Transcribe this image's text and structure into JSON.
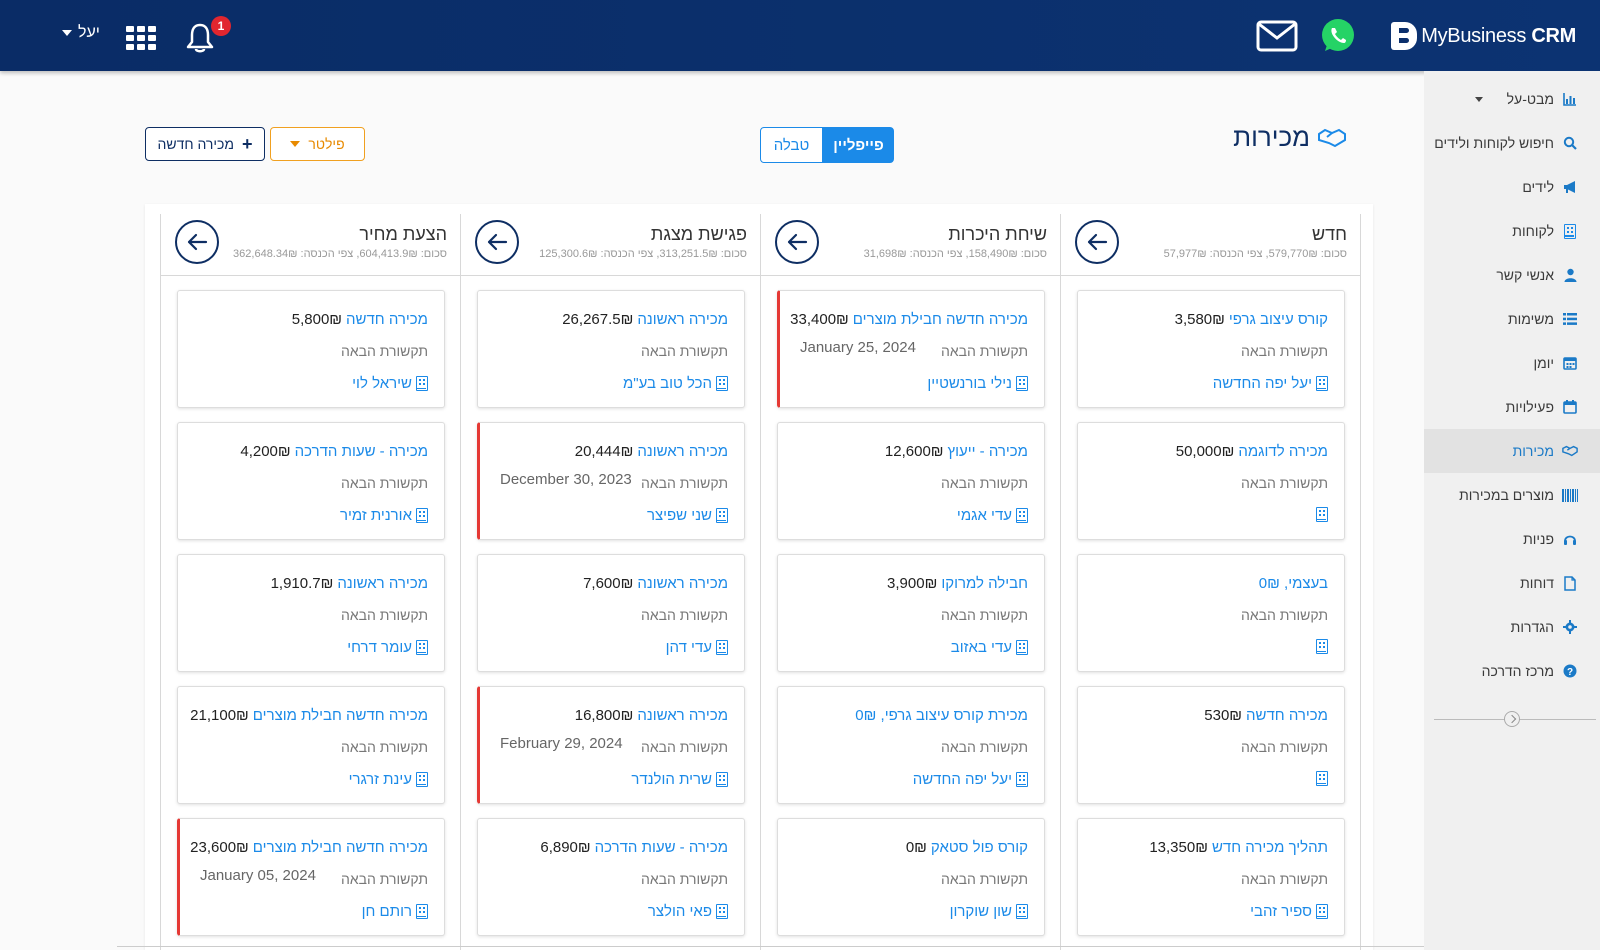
{
  "header": {
    "brand_prefix": "MyBusiness",
    "brand_bold": "CRM",
    "notification_count": "1",
    "user_name": "יעל"
  },
  "sidebar": {
    "items": [
      {
        "label": "מבט-על",
        "icon": "chart-icon",
        "has_caret": true
      },
      {
        "label": "חיפוש לקוחות ולידים",
        "icon": "search-icon"
      },
      {
        "label": "לידים",
        "icon": "megaphone-icon"
      },
      {
        "label": "לקוחות",
        "icon": "building-icon"
      },
      {
        "label": "אנשי קשר",
        "icon": "person-icon"
      },
      {
        "label": "משימות",
        "icon": "list-icon"
      },
      {
        "label": "יומן",
        "icon": "calendar-icon"
      },
      {
        "label": "פעילויות",
        "icon": "calendar-check-icon"
      },
      {
        "label": "מכירות",
        "icon": "handshake-icon",
        "active": true
      },
      {
        "label": "מוצרים במכירות",
        "icon": "barcode-icon"
      },
      {
        "label": "פניות",
        "icon": "headset-icon"
      },
      {
        "label": "דוחות",
        "icon": "file-icon"
      },
      {
        "label": "הגדרות",
        "icon": "gear-icon"
      },
      {
        "label": "מרכז הדרכה",
        "icon": "question-icon"
      }
    ]
  },
  "page": {
    "title": "מכירות",
    "view_pipeline": "פייפליין",
    "view_table": "טבלה",
    "filter_label": "פילטר",
    "new_sale_label": "מכירה חדשה",
    "next_contact_label": "תקשורת הבאה"
  },
  "columns": [
    {
      "title": "חדש",
      "sums": "סכום: 579,770₪, צפי הכנסה: 57,977₪",
      "cards": [
        {
          "name": "קורס עיצוב גרפי",
          "amount": "3,580₪",
          "client": "יעל יפה החדשה",
          "date": "",
          "alert": false
        },
        {
          "name": "מכירה לדוגמה",
          "amount": "50,000₪",
          "client": "",
          "date": "",
          "alert": false
        },
        {
          "name": "בעצמי, 0₪",
          "amount": "",
          "client": "",
          "date": "",
          "alert": false
        },
        {
          "name": "מכירה חדשה",
          "amount": "530₪",
          "client": "",
          "date": "",
          "alert": false
        },
        {
          "name": "תהליך מכירה חדש",
          "amount": "13,350₪",
          "client": "ספיר זהבי",
          "date": "",
          "alert": false
        }
      ]
    },
    {
      "title": "שיחת היכרות",
      "sums": "סכום: 158,490₪, צפי הכנסה: 31,698₪",
      "cards": [
        {
          "name": "מכירה חדשה חבילת מוצרים",
          "amount": "33,400₪",
          "client": "נילי בורנשטיין",
          "date": "January 25, 2024",
          "alert": true
        },
        {
          "name": "מכירה - ייעוץ",
          "amount": "12,600₪",
          "client": "עדי אגמי",
          "date": "",
          "alert": false
        },
        {
          "name": "חבילה למרוקו",
          "amount": "3,900₪",
          "client": "עדי באזוב",
          "date": "",
          "alert": false
        },
        {
          "name": "מכירת קורס עיצוב גרפי, 0₪",
          "amount": "",
          "client": "יעל יפה החדשה",
          "date": "",
          "alert": false
        },
        {
          "name": "קורס פול סטאק",
          "amount": "0₪",
          "client": "שון שוקרון",
          "date": "",
          "alert": false
        }
      ]
    },
    {
      "title": "פגישת מצגת",
      "sums": "סכום: 313,251.5₪, צפי הכנסה: 125,300.6₪",
      "cards": [
        {
          "name": "מכירה ראשונה",
          "amount": "26,267.5₪",
          "client": "הכל טוב בע\"מ",
          "date": "",
          "alert": false
        },
        {
          "name": "מכירה ראשונה",
          "amount": "20,444₪",
          "client": "שני שפיצר",
          "date": "December 30, 2023",
          "alert": true
        },
        {
          "name": "מכירה ראשונה",
          "amount": "7,600₪",
          "client": "עדי דהן",
          "date": "",
          "alert": false
        },
        {
          "name": "מכירה ראשונה",
          "amount": "16,800₪",
          "client": "שרית הולנדר",
          "date": "February 29, 2024",
          "alert": true
        },
        {
          "name": "מכירה - שעות הדרכה",
          "amount": "6,890₪",
          "client": "פאי הולצר",
          "date": "",
          "alert": false
        }
      ]
    },
    {
      "title": "הצעת מחיר",
      "sums": "סכום: 604,413.9₪, צפי הכנסה: 362,648.34₪",
      "cards": [
        {
          "name": "מכירה חדשה",
          "amount": "5,800₪",
          "client": "שיראל לוי",
          "date": "",
          "alert": false
        },
        {
          "name": "מכירה - שעות הדרכה",
          "amount": "4,200₪",
          "client": "אורנית זמיר",
          "date": "",
          "alert": false
        },
        {
          "name": "מכירה ראשונה",
          "amount": "1,910.7₪",
          "client": "עומר דרחי",
          "date": "",
          "alert": false
        },
        {
          "name": "מכירה חדשה חבילת מוצרים",
          "amount": "21,100₪",
          "client": "עינת זרגרי",
          "date": "",
          "alert": false
        },
        {
          "name": "מכירה חדשה חבילת מוצרים",
          "amount": "23,600₪",
          "client": "רותם חן",
          "date": "January 05, 2024",
          "alert": true
        }
      ]
    }
  ]
}
